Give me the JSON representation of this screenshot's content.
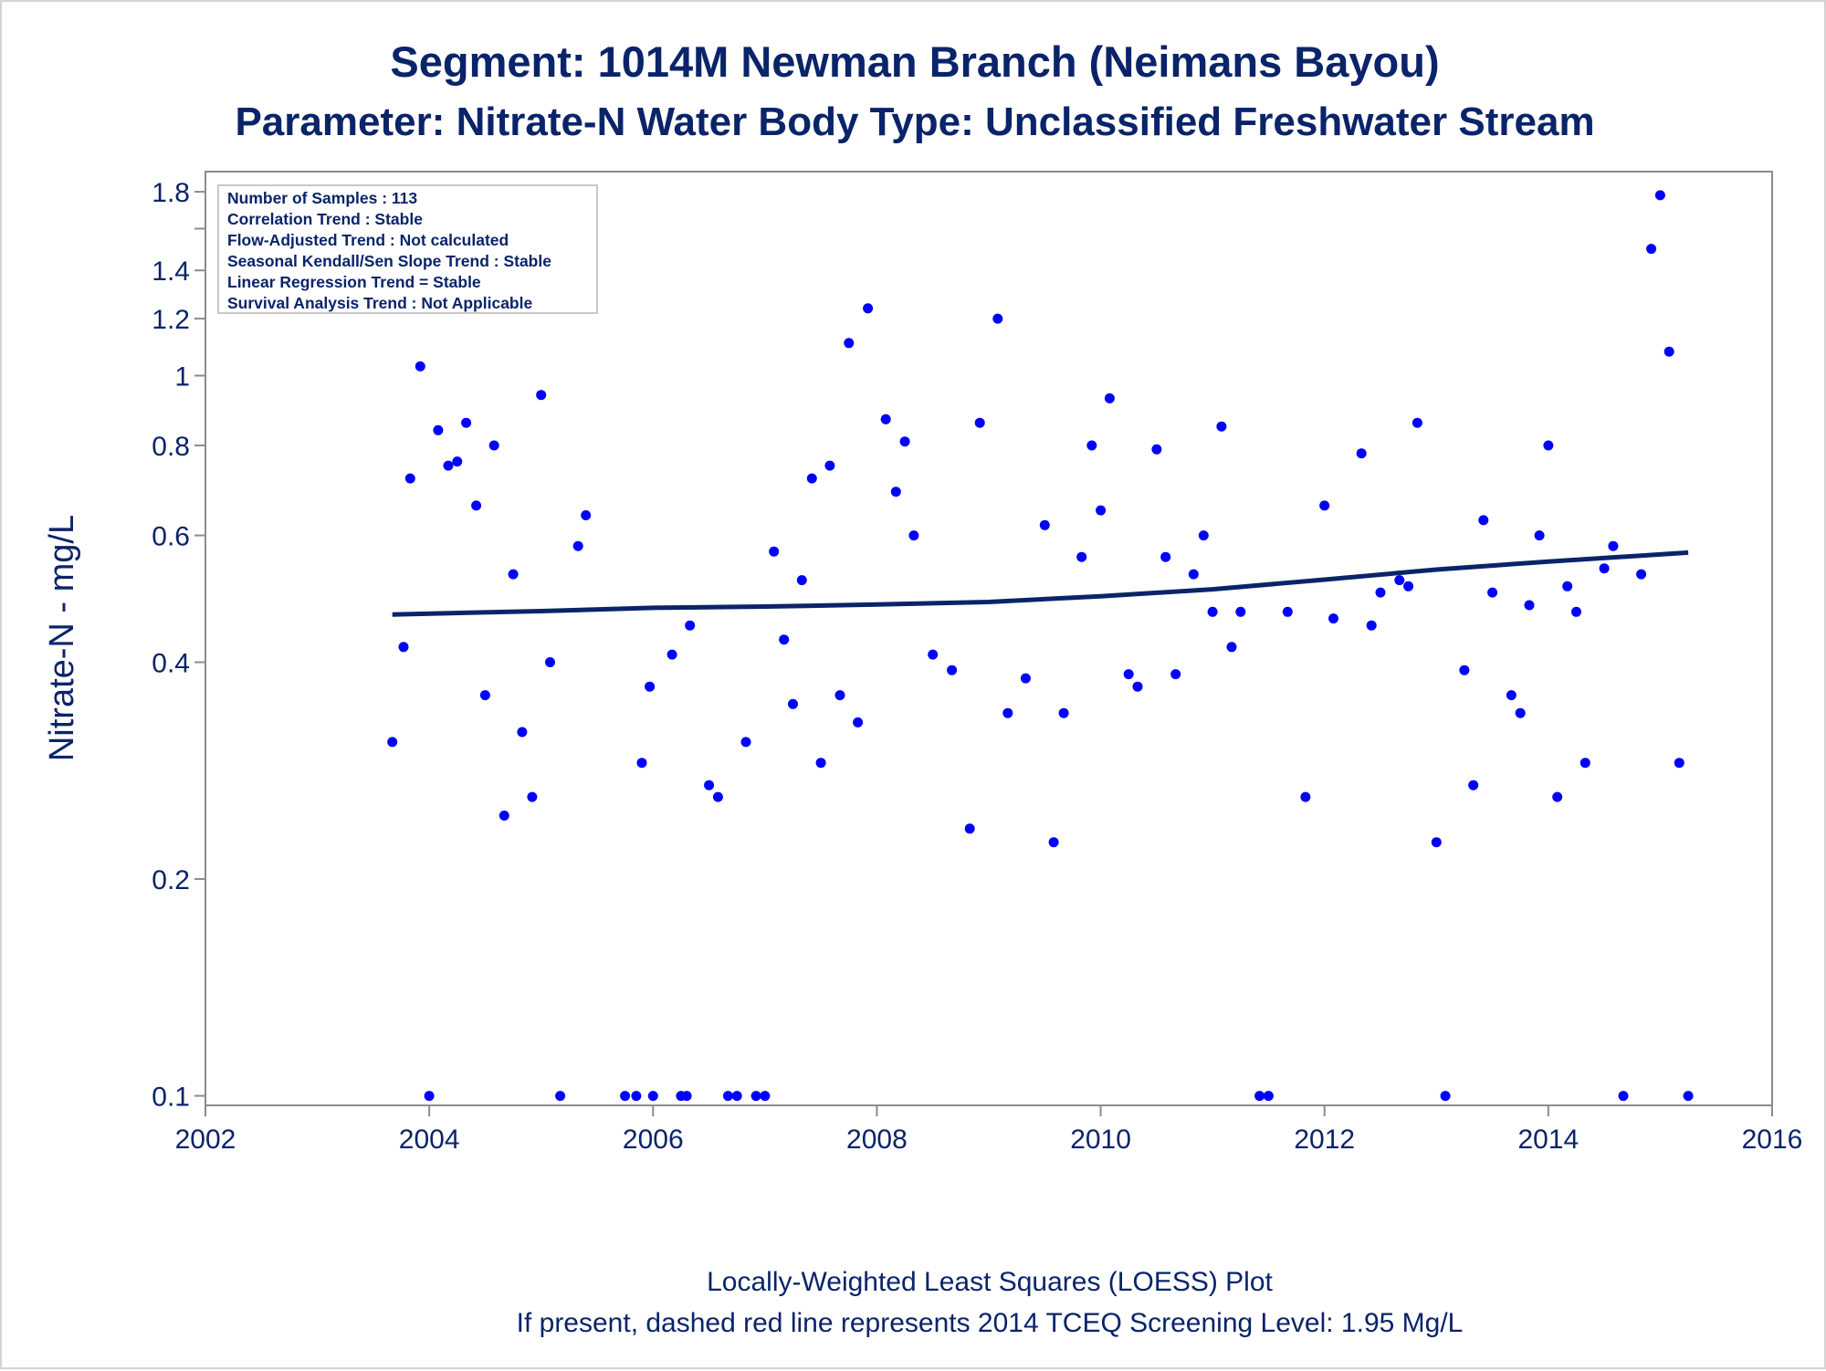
{
  "chart_data": {
    "type": "scatter",
    "title": "Segment: 1014M  Newman Branch (Neimans Bayou)",
    "subtitle": "Parameter: Nitrate-N   Water Body Type: Unclassified Freshwater Stream",
    "ylabel": "Nitrate-N - mg/L",
    "xlabel": "",
    "y_scale": "log",
    "xlim": [
      2002,
      2016
    ],
    "ylim": [
      0.097,
      1.92
    ],
    "x_ticks": [
      2002,
      2004,
      2006,
      2008,
      2010,
      2012,
      2014,
      2016
    ],
    "x_tick_labels": [
      "2002",
      "2004",
      "2006",
      "2008",
      "2010",
      "2012",
      "2014",
      "2016"
    ],
    "y_ticks": [
      0.1,
      0.2,
      0.4,
      0.6,
      0.8,
      1.0,
      1.2,
      1.4,
      1.8
    ],
    "y_tick_labels": [
      "0.1",
      "0.2",
      "0.4",
      "0.6",
      "0.8",
      "1",
      "1.2",
      "1.4",
      "1.8"
    ],
    "y_minor_ticks": [
      1.6
    ],
    "grid": false,
    "legend": null,
    "stats_box": [
      "Number of Samples : 113",
      "Correlation Trend : Stable",
      "Flow-Adjusted Trend : Not calculated",
      "Seasonal Kendall/Sen Slope Trend : Stable",
      "Linear Regression Trend = Stable",
      "Survival Analysis Trend : Not Applicable"
    ],
    "footnotes": [
      "Locally-Weighted Least Squares (LOESS) Plot",
      "If present, dashed red line represents 2014 TCEQ Screening Level: 1.95 Mg/L"
    ],
    "colors": {
      "points": "#0000ff",
      "trend": "#0a246a",
      "text": "#0a246a",
      "axis": "#8c8c8c"
    },
    "points": [
      [
        2003.67,
        0.31
      ],
      [
        2003.77,
        0.42
      ],
      [
        2003.83,
        0.72
      ],
      [
        2003.92,
        1.03
      ],
      [
        2004.0,
        0.1
      ],
      [
        2004.08,
        0.84
      ],
      [
        2004.17,
        0.75
      ],
      [
        2004.25,
        0.76
      ],
      [
        2004.33,
        0.86
      ],
      [
        2004.42,
        0.66
      ],
      [
        2004.5,
        0.36
      ],
      [
        2004.58,
        0.8
      ],
      [
        2004.67,
        0.245
      ],
      [
        2004.75,
        0.53
      ],
      [
        2004.83,
        0.32
      ],
      [
        2004.92,
        0.26
      ],
      [
        2005.0,
        0.94
      ],
      [
        2005.08,
        0.4
      ],
      [
        2005.17,
        0.1
      ],
      [
        2005.33,
        0.58
      ],
      [
        2005.4,
        0.64
      ],
      [
        2005.75,
        0.1
      ],
      [
        2005.85,
        0.1
      ],
      [
        2005.9,
        0.29
      ],
      [
        2005.97,
        0.37
      ],
      [
        2006.0,
        0.1
      ],
      [
        2006.17,
        0.41
      ],
      [
        2006.25,
        0.1
      ],
      [
        2006.3,
        0.1
      ],
      [
        2006.33,
        0.45
      ],
      [
        2006.5,
        0.27
      ],
      [
        2006.58,
        0.26
      ],
      [
        2006.67,
        0.1
      ],
      [
        2006.75,
        0.1
      ],
      [
        2006.83,
        0.31
      ],
      [
        2006.92,
        0.1
      ],
      [
        2007.0,
        0.1
      ],
      [
        2007.08,
        0.57
      ],
      [
        2007.17,
        0.43
      ],
      [
        2007.25,
        0.35
      ],
      [
        2007.33,
        0.52
      ],
      [
        2007.42,
        0.72
      ],
      [
        2007.5,
        0.29
      ],
      [
        2007.58,
        0.75
      ],
      [
        2007.67,
        0.36
      ],
      [
        2007.75,
        1.11
      ],
      [
        2007.83,
        0.33
      ],
      [
        2007.92,
        1.24
      ],
      [
        2008.08,
        0.87
      ],
      [
        2008.17,
        0.69
      ],
      [
        2008.25,
        0.81
      ],
      [
        2008.33,
        0.6
      ],
      [
        2008.5,
        0.41
      ],
      [
        2008.67,
        0.39
      ],
      [
        2008.83,
        0.235
      ],
      [
        2008.92,
        0.86
      ],
      [
        2009.08,
        1.2
      ],
      [
        2009.17,
        0.34
      ],
      [
        2009.33,
        0.38
      ],
      [
        2009.5,
        0.62
      ],
      [
        2009.58,
        0.225
      ],
      [
        2009.67,
        0.34
      ],
      [
        2009.83,
        0.56
      ],
      [
        2009.92,
        0.8
      ],
      [
        2010.0,
        0.65
      ],
      [
        2010.08,
        0.93
      ],
      [
        2010.25,
        0.385
      ],
      [
        2010.33,
        0.37
      ],
      [
        2010.5,
        0.79
      ],
      [
        2010.58,
        0.56
      ],
      [
        2010.67,
        0.385
      ],
      [
        2010.83,
        0.53
      ],
      [
        2010.92,
        0.6
      ],
      [
        2011.0,
        0.47
      ],
      [
        2011.08,
        0.85
      ],
      [
        2011.17,
        0.42
      ],
      [
        2011.25,
        0.47
      ],
      [
        2011.42,
        0.1
      ],
      [
        2011.5,
        0.1
      ],
      [
        2011.67,
        0.47
      ],
      [
        2011.83,
        0.26
      ],
      [
        2012.0,
        0.66
      ],
      [
        2012.08,
        0.46
      ],
      [
        2012.33,
        0.78
      ],
      [
        2012.42,
        0.45
      ],
      [
        2012.5,
        0.5
      ],
      [
        2012.67,
        0.52
      ],
      [
        2012.75,
        0.51
      ],
      [
        2012.83,
        0.86
      ],
      [
        2013.0,
        0.225
      ],
      [
        2013.08,
        0.1
      ],
      [
        2013.25,
        0.39
      ],
      [
        2013.33,
        0.27
      ],
      [
        2013.42,
        0.63
      ],
      [
        2013.5,
        0.5
      ],
      [
        2013.67,
        0.36
      ],
      [
        2013.75,
        0.34
      ],
      [
        2013.83,
        0.48
      ],
      [
        2013.92,
        0.6
      ],
      [
        2014.0,
        0.8
      ],
      [
        2014.08,
        0.26
      ],
      [
        2014.17,
        0.51
      ],
      [
        2014.25,
        0.47
      ],
      [
        2014.33,
        0.29
      ],
      [
        2014.5,
        0.54
      ],
      [
        2014.58,
        0.58
      ],
      [
        2014.67,
        0.1
      ],
      [
        2014.83,
        0.53
      ],
      [
        2014.92,
        1.5
      ],
      [
        2015.0,
        1.78
      ],
      [
        2015.08,
        1.08
      ],
      [
        2015.17,
        0.29
      ],
      [
        2015.25,
        0.1
      ]
    ],
    "trend_line": {
      "type": "loess",
      "x": [
        2003.67,
        2005.0,
        2006.0,
        2007.0,
        2008.0,
        2009.0,
        2010.0,
        2011.0,
        2012.0,
        2013.0,
        2014.0,
        2015.25
      ],
      "y": [
        0.466,
        0.471,
        0.476,
        0.478,
        0.481,
        0.485,
        0.494,
        0.505,
        0.521,
        0.538,
        0.552,
        0.568
      ]
    }
  }
}
